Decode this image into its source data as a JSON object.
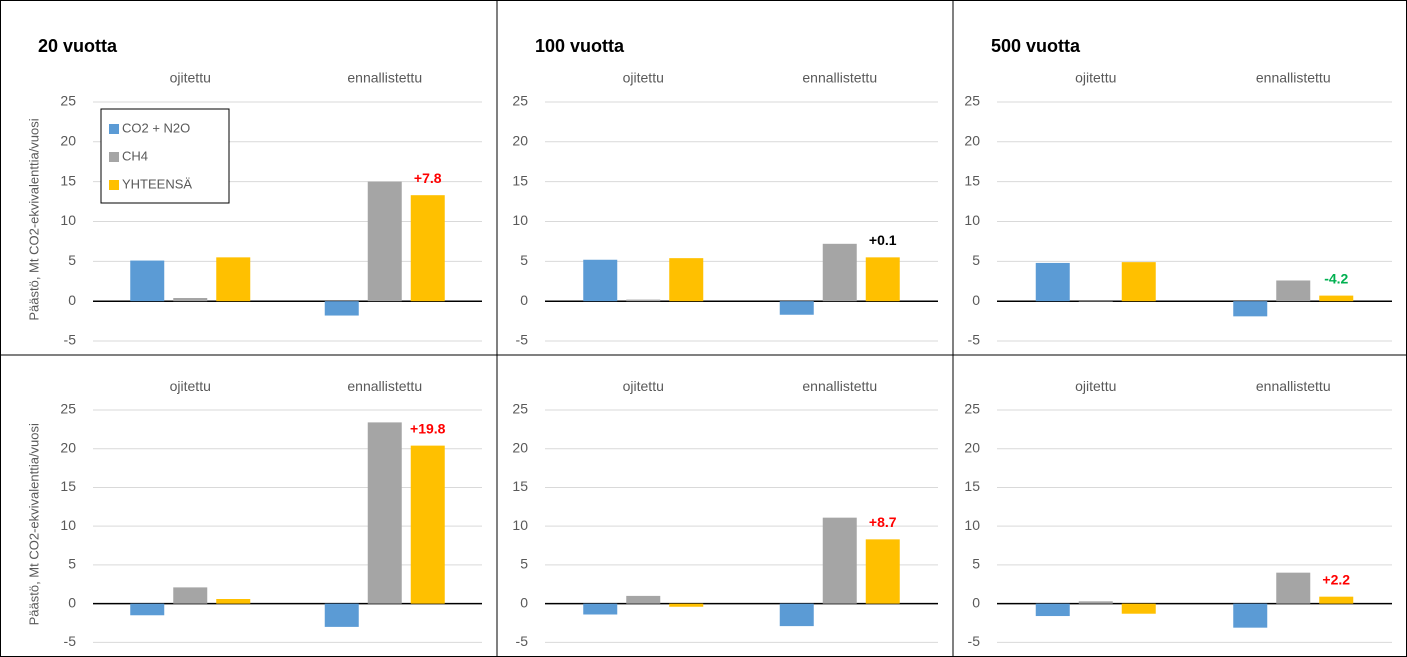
{
  "chart_data": [
    {
      "type": "bar",
      "title": "20 vuotta",
      "ylabel": "Päästö, Mt  CO2-ekvivalenttia/vuosi",
      "categories": [
        "ojitettu",
        "ennallistettu"
      ],
      "series": [
        {
          "name": "CO2 + N2O",
          "color": "#5b9bd5",
          "values": [
            5.1,
            -1.8
          ]
        },
        {
          "name": "CH4",
          "color": "#a5a5a5",
          "values": [
            0.4,
            15.0
          ]
        },
        {
          "name": "YHTEENSÄ",
          "color": "#ffc000",
          "values": [
            5.5,
            13.3
          ]
        }
      ],
      "annotation": {
        "text": "+7.8",
        "color": "#ff0000"
      },
      "ylim": [
        -6.5,
        27
      ],
      "yticks": [
        -5,
        0,
        5,
        10,
        15,
        20,
        25
      ],
      "grid": true,
      "legend": "upper left"
    },
    {
      "type": "bar",
      "title": "100 vuotta",
      "categories": [
        "ojitettu",
        "ennallistettu"
      ],
      "series": [
        {
          "color": "#5b9bd5",
          "values": [
            5.2,
            -1.7
          ]
        },
        {
          "color": "#a5a5a5",
          "values": [
            0.2,
            7.2
          ]
        },
        {
          "color": "#ffc000",
          "values": [
            5.4,
            5.5
          ]
        }
      ],
      "annotation": {
        "text": "+0.1",
        "color": "#000000"
      },
      "ylim": [
        -6.5,
        27
      ],
      "yticks": [
        -5,
        0,
        5,
        10,
        15,
        20,
        25
      ],
      "grid": true
    },
    {
      "type": "bar",
      "title": "500 vuotta",
      "categories": [
        "ojitettu",
        "ennallistettu"
      ],
      "series": [
        {
          "color": "#5b9bd5",
          "values": [
            4.8,
            -1.9
          ]
        },
        {
          "color": "#a5a5a5",
          "values": [
            0.0,
            2.6
          ]
        },
        {
          "color": "#ffc000",
          "values": [
            4.9,
            0.7
          ]
        }
      ],
      "annotation": {
        "text": "-4.2",
        "color": "#00b050"
      },
      "ylim": [
        -6.5,
        27
      ],
      "yticks": [
        -5,
        0,
        5,
        10,
        15,
        20,
        25
      ],
      "grid": true
    },
    {
      "type": "bar",
      "ylabel": "Päästö, Mt  CO2-ekvivalenttia/vuosi",
      "categories": [
        "ojitettu",
        "ennallistettu"
      ],
      "series": [
        {
          "color": "#5b9bd5",
          "values": [
            -1.5,
            -3.0
          ]
        },
        {
          "color": "#a5a5a5",
          "values": [
            2.1,
            23.4
          ]
        },
        {
          "color": "#ffc000",
          "values": [
            0.6,
            20.4
          ]
        }
      ],
      "annotation": {
        "text": "+19.8",
        "color": "#ff0000"
      },
      "ylim": [
        -6.5,
        27
      ],
      "yticks": [
        -5,
        0,
        5,
        10,
        15,
        20,
        25
      ],
      "grid": true
    },
    {
      "type": "bar",
      "categories": [
        "ojitettu",
        "ennallistettu"
      ],
      "series": [
        {
          "color": "#5b9bd5",
          "values": [
            -1.4,
            -2.9
          ]
        },
        {
          "color": "#a5a5a5",
          "values": [
            1.0,
            11.1
          ]
        },
        {
          "color": "#ffc000",
          "values": [
            -0.4,
            8.3
          ]
        }
      ],
      "annotation": {
        "text": "+8.7",
        "color": "#ff0000"
      },
      "ylim": [
        -6.5,
        27
      ],
      "yticks": [
        -5,
        0,
        5,
        10,
        15,
        20,
        25
      ],
      "grid": true
    },
    {
      "type": "bar",
      "categories": [
        "ojitettu",
        "ennallistettu"
      ],
      "series": [
        {
          "color": "#5b9bd5",
          "values": [
            -1.6,
            -3.1
          ]
        },
        {
          "color": "#a5a5a5",
          "values": [
            0.3,
            4.0
          ]
        },
        {
          "color": "#ffc000",
          "values": [
            -1.3,
            0.9
          ]
        }
      ],
      "annotation": {
        "text": "+2.2",
        "color": "#ff0000"
      },
      "ylim": [
        -6.5,
        27
      ],
      "yticks": [
        -5,
        0,
        5,
        10,
        15,
        20,
        25
      ],
      "grid": true
    }
  ]
}
